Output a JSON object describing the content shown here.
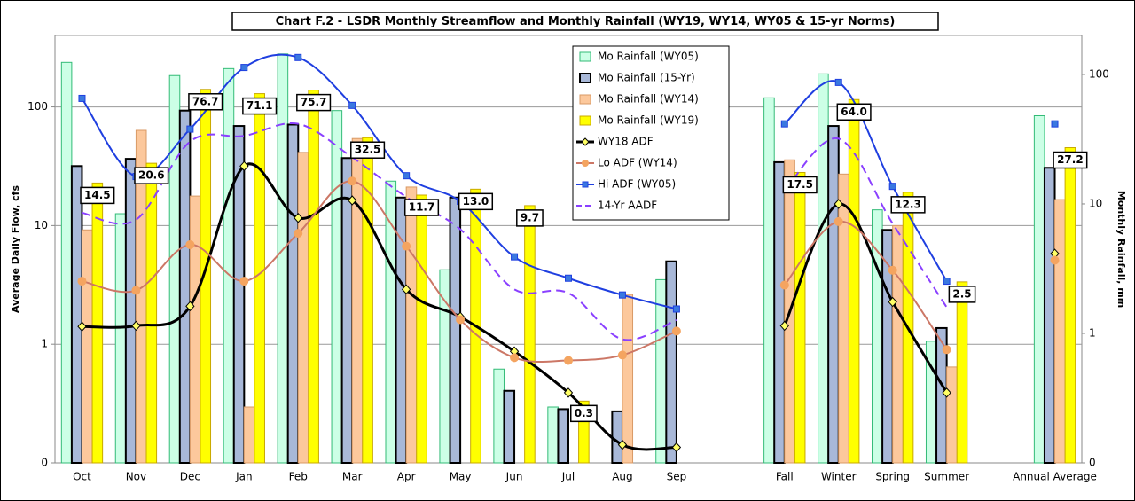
{
  "chart_data": {
    "type": "combo",
    "title": "Chart F.2 - LSDR Monthly Streamflow and Monthly Rainfall (WY19, WY14, WY05 & 15-yr Norms)",
    "y_label": "Average Daily Flow, cfs",
    "y2_label": "Monthly Rainfall, mm",
    "categories": [
      "Oct",
      "Nov",
      "Dec",
      "Jan",
      "Feb",
      "Mar",
      "Apr",
      "May",
      "Jun",
      "Jul",
      "Aug",
      "Sep",
      null,
      "Fall",
      "Winter",
      "Spring",
      "Summer",
      null,
      "Annual Average"
    ],
    "y_log": true,
    "y2_log": true,
    "grid": true,
    "ylim": [
      0.1,
      400
    ],
    "yticks": [
      {
        "value": 0.1,
        "label": "0"
      },
      1,
      10,
      100
    ],
    "y2lim": [
      0.1,
      200
    ],
    "y2ticks": [
      {
        "value": 0.1,
        "label": "0"
      },
      1,
      10,
      100
    ],
    "series": [
      {
        "name": "Mo Rainfall (WY05)",
        "type": "bar",
        "axis": "y2",
        "color": "#ccffe6",
        "stroke": "#33bb77",
        "values": [
          124,
          8.4,
          98,
          111,
          144,
          52.6,
          15,
          3.1,
          0.53,
          0.27,
          null,
          2.6,
          null,
          66,
          101,
          9,
          0.87,
          null,
          48
        ]
      },
      {
        "name": "Mo Rainfall (15-Yr)",
        "type": "bar",
        "axis": "y2",
        "color": "#a8b8d8",
        "stroke": "#000000",
        "values": [
          19.6,
          22.3,
          52.6,
          40,
          41,
          22.6,
          11.2,
          11.2,
          0.36,
          0.26,
          0.25,
          3.6,
          null,
          21,
          40,
          6.3,
          1.1,
          null,
          19
        ]
      },
      {
        "name": "Mo Rainfall (WY14)",
        "type": "bar",
        "axis": "y2",
        "color": "#fcc89c",
        "stroke": "#d99a66",
        "values": [
          6.3,
          37,
          11.5,
          0.27,
          25,
          32,
          13.5,
          null,
          null,
          null,
          2.0,
          null,
          null,
          21.9,
          17,
          6.8,
          0.55,
          null,
          10.8
        ]
      },
      {
        "name": "Mo Rainfall (WY19)",
        "type": "bar",
        "axis": "y2",
        "color": "#ffff00",
        "stroke": "#c8a800",
        "values": [
          14.5,
          20.6,
          76.7,
          71.1,
          75.7,
          32.5,
          11.7,
          13.0,
          9.7,
          0.3,
          null,
          null,
          null,
          17.5,
          64.0,
          12.3,
          2.5,
          null,
          27.2
        ],
        "value_labels": [
          "14.5",
          "20.6",
          "76.7",
          "71.1",
          "75.7",
          "32.5",
          "11.7",
          "13.0",
          "9.7",
          "0.3",
          null,
          null,
          null,
          "17.5",
          "64.0",
          "12.3",
          "2.5",
          null,
          "27.2"
        ]
      },
      {
        "name": "WY18 ADF",
        "type": "line",
        "color": "#000000",
        "marker": "diamond",
        "marker_color": "#ffff66",
        "values": [
          1.41,
          1.43,
          2.09,
          31.7,
          11.6,
          16.3,
          2.9,
          1.7,
          0.87,
          0.39,
          0.142,
          0.135,
          null,
          1.43,
          15.2,
          2.27,
          0.39,
          null,
          5.8
        ]
      },
      {
        "name": "Lo ADF (WY14)",
        "type": "line",
        "color": "#cc7766",
        "marker": "circle",
        "marker_color": "#f4a460",
        "values": [
          3.4,
          2.84,
          6.9,
          3.4,
          8.6,
          23.7,
          6.7,
          1.61,
          0.77,
          0.73,
          0.81,
          1.29,
          null,
          3.15,
          10.8,
          4.2,
          0.9,
          null,
          5.1
        ]
      },
      {
        "name": "Hi ADF (WY05)",
        "type": "line",
        "color": "#1f3fe0",
        "marker": "square",
        "marker_color": "#3a78e0",
        "values": [
          118,
          25.9,
          65,
          215,
          261,
          103,
          26.3,
          16,
          5.45,
          3.6,
          2.6,
          1.98,
          null,
          72,
          161,
          21.4,
          3.4,
          null,
          72
        ]
      },
      {
        "name": "14-Yr AADF",
        "type": "line",
        "color": "#8a40ff",
        "dash": true,
        "marker": null,
        "values": [
          12.8,
          11.2,
          51,
          57,
          72,
          37.6,
          17.4,
          9.3,
          2.9,
          2.7,
          1.1,
          1.6,
          null,
          19.7,
          54,
          10.4,
          2.05,
          null,
          null
        ]
      }
    ]
  }
}
